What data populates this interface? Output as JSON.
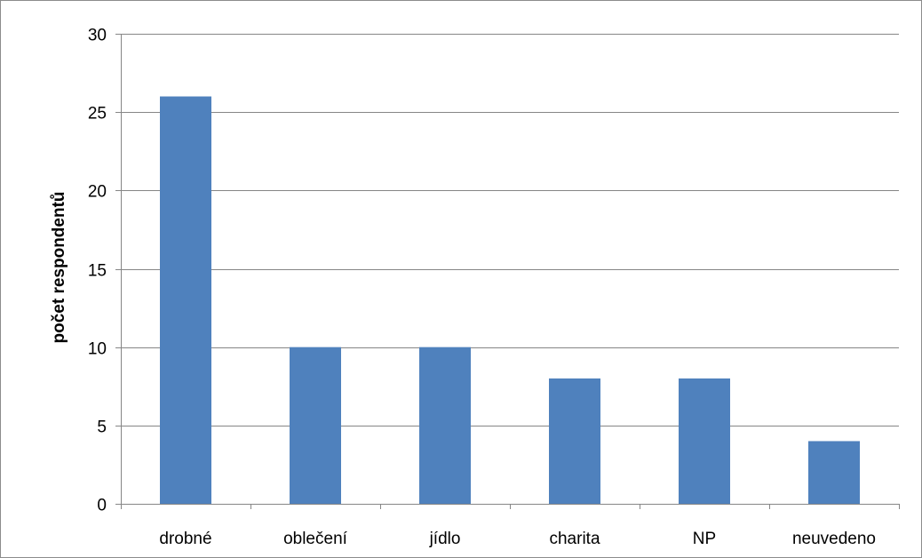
{
  "chart_data": {
    "type": "bar",
    "title": "",
    "xlabel": "",
    "ylabel": "počet respondentů",
    "categories": [
      "drobné",
      "oblečení",
      "jídlo",
      "charita",
      "NP",
      "neuvedeno"
    ],
    "values": [
      26,
      10,
      10,
      8,
      8,
      4
    ],
    "ylim": [
      0,
      30
    ],
    "yticks": [
      0,
      5,
      10,
      15,
      20,
      25,
      30
    ],
    "grid": true,
    "legend": "none",
    "colors": {
      "bar": "#4f81bd",
      "grid": "#868686",
      "axis": "#868686"
    }
  }
}
